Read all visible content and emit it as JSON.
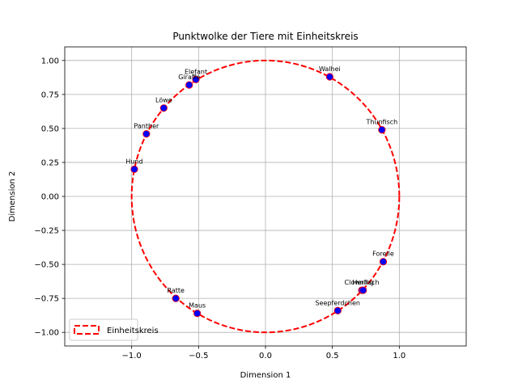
{
  "chart_data": {
    "type": "scatter",
    "title": "Punktwolke der Tiere mit Einheitskreis",
    "xlabel": "Dimension 1",
    "ylabel": "Dimension 2",
    "xlim": [
      -1.5,
      1.5
    ],
    "ylim": [
      -1.1,
      1.1
    ],
    "xticks": [
      -1.0,
      -0.5,
      0.0,
      0.5,
      1.0
    ],
    "xtick_labels": [
      "−1.0",
      "−0.5",
      "0.0",
      "0.5",
      "1.0"
    ],
    "yticks": [
      -1.0,
      -0.75,
      -0.5,
      -0.25,
      0.0,
      0.25,
      0.5,
      0.75,
      1.0
    ],
    "ytick_labels": [
      "−1.00",
      "−0.75",
      "−0.50",
      "−0.25",
      "0.00",
      "0.25",
      "0.50",
      "0.75",
      "1.00"
    ],
    "grid": true,
    "legend": {
      "placement": "lower-left",
      "entries": [
        "Einheitskreis"
      ]
    },
    "circle": {
      "name": "Einheitskreis",
      "radius": 1,
      "color": "#ff0000",
      "style": "dashed"
    },
    "marker_color": "#0000ff",
    "points": [
      {
        "label": "Elefant",
        "x": -0.52,
        "y": 0.86
      },
      {
        "label": "Giraffe",
        "x": -0.57,
        "y": 0.82
      },
      {
        "label": "Löwe",
        "x": -0.76,
        "y": 0.65
      },
      {
        "label": "Panther",
        "x": -0.89,
        "y": 0.46
      },
      {
        "label": "Hund",
        "x": -0.98,
        "y": 0.2
      },
      {
        "label": "Walhei",
        "x": 0.48,
        "y": 0.88
      },
      {
        "label": "Thunfisch",
        "x": 0.87,
        "y": 0.49
      },
      {
        "label": "Forelle",
        "x": 0.88,
        "y": -0.48
      },
      {
        "label": "Clownfisch",
        "x": 0.72,
        "y": -0.69
      },
      {
        "label": "Hering",
        "x": 0.73,
        "y": -0.69
      },
      {
        "label": "Seepferdchen",
        "x": 0.54,
        "y": -0.84
      },
      {
        "label": "Ratte",
        "x": -0.67,
        "y": -0.75
      },
      {
        "label": "Maus",
        "x": -0.51,
        "y": -0.86
      }
    ]
  }
}
